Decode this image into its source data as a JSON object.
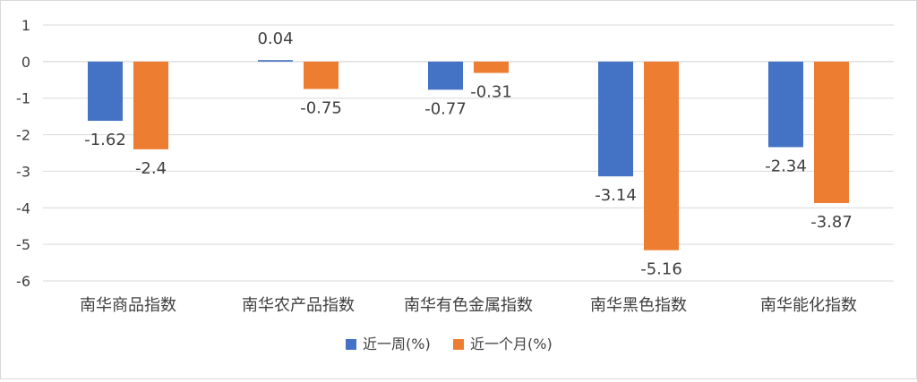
{
  "chart_data": {
    "type": "bar",
    "title": "",
    "xlabel": "",
    "ylabel": "",
    "categories": [
      "南华商品指数",
      "南华农产品指数",
      "南华有色金属指数",
      "南华黑色指数",
      "南华能化指数"
    ],
    "series": [
      {
        "name": "近一周(%)",
        "values": [
          -1.62,
          0.04,
          -0.77,
          -3.14,
          -2.34
        ],
        "color": "#4472C4"
      },
      {
        "name": "近一个月(%)",
        "values": [
          -2.4,
          -0.75,
          -0.31,
          -5.16,
          -3.87
        ],
        "color": "#ED7D31"
      }
    ],
    "ylim": [
      -6,
      1
    ],
    "yticks": [
      1,
      0,
      -1,
      -2,
      -3,
      -4,
      -5,
      -6
    ],
    "grid": true,
    "legend": "bottom"
  }
}
